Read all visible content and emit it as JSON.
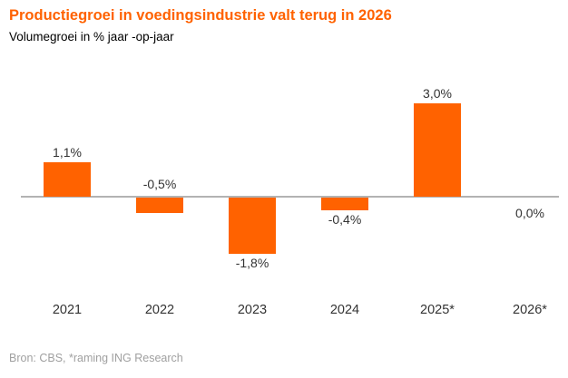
{
  "header": {
    "title": "Productiegroei in voedingsindustrie valt terug in 2026",
    "subtitle": "Volumegroei in % jaar -op-jaar"
  },
  "footer": {
    "source": "Bron: CBS, *raming ING Research"
  },
  "colors": {
    "accent": "#FF6200",
    "axis_line": "#b3b3b3",
    "label_text": "#333333",
    "source_text": "#a0a0a0",
    "background": "#ffffff"
  },
  "chart_data": {
    "type": "bar",
    "title": "Productiegroei in voedingsindustrie valt terug in 2026",
    "subtitle": "Volumegroei in % jaar -op-jaar",
    "categories": [
      "2021",
      "2022",
      "2023",
      "2024",
      "2025*",
      "2026*"
    ],
    "values": [
      1.1,
      -0.5,
      -1.8,
      -0.4,
      3.0,
      0.0
    ],
    "value_labels": [
      "1,1%",
      "-0,5%",
      "-1,8%",
      "-0,4%",
      "3,0%",
      "0,0%"
    ],
    "label_placement": [
      "above-bar",
      "above-axis",
      "below-bar",
      "below-bar",
      "above-bar",
      "below-axis"
    ],
    "xlabel": "",
    "ylabel": "Volumegroei in % jaar-op-jaar",
    "ylim": [
      -2.5,
      3.5
    ],
    "grid": false,
    "legend": false,
    "bar_color": "#FF6200",
    "source": "Bron: CBS, *raming ING Research"
  }
}
